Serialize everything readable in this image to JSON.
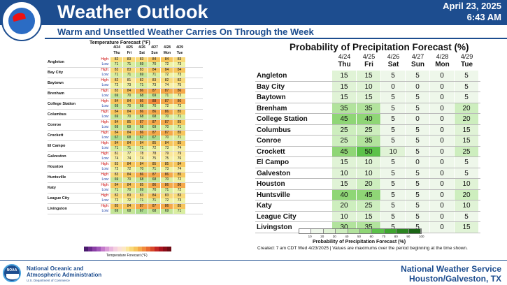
{
  "header": {
    "title": "Weather Outlook",
    "date": "April 23, 2025",
    "time": "6:43 AM",
    "subtitle": "Warm and Unsettled Weather Carries On Through the Week",
    "logo_ring_text": "NATIONAL WEATHER SERVICE"
  },
  "temperature": {
    "title": "Temperature Forecast (°F)",
    "scale_label": "Temperature Forecast (°F)",
    "high_label": "High:",
    "low_label": "Low:",
    "columns": [
      {
        "date": "4/24",
        "dow": "Thu"
      },
      {
        "date": "4/25",
        "dow": "Fri"
      },
      {
        "date": "4/26",
        "dow": "Sat"
      },
      {
        "date": "4/27",
        "dow": "Sun"
      },
      {
        "date": "4/28",
        "dow": "Mon"
      },
      {
        "date": "4/29",
        "dow": "Tue"
      }
    ],
    "rows": [
      {
        "city": "Angleton",
        "high": [
          "82",
          "83",
          "83",
          "84",
          "84",
          "83"
        ],
        "low": [
          "71",
          "71",
          "69",
          "70",
          "72",
          "73"
        ]
      },
      {
        "city": "Bay City",
        "high": [
          "83",
          "83",
          "83",
          "84",
          "84",
          "84"
        ],
        "low": [
          "71",
          "71",
          "69",
          "71",
          "72",
          "73"
        ]
      },
      {
        "city": "Baytown",
        "high": [
          "82",
          "81",
          "82",
          "83",
          "82",
          "82"
        ],
        "low": [
          "72",
          "73",
          "71",
          "73",
          "74",
          "75"
        ]
      },
      {
        "city": "Brenham",
        "high": [
          "83",
          "84",
          "86",
          "87",
          "87",
          "86"
        ],
        "low": [
          "69",
          "70",
          "68",
          "69",
          "71",
          "72"
        ]
      },
      {
        "city": "College Station",
        "high": [
          "84",
          "84",
          "86",
          "88",
          "87",
          "86"
        ],
        "low": [
          "69",
          "70",
          "68",
          "70",
          "72",
          "72"
        ]
      },
      {
        "city": "Columbus",
        "high": [
          "84",
          "84",
          "86",
          "86",
          "86",
          "85"
        ],
        "low": [
          "69",
          "70",
          "68",
          "68",
          "70",
          "71"
        ]
      },
      {
        "city": "Conroe",
        "high": [
          "84",
          "85",
          "87",
          "87",
          "87",
          "85"
        ],
        "low": [
          "69",
          "69",
          "68",
          "69",
          "70",
          "71"
        ]
      },
      {
        "city": "Crockett",
        "high": [
          "84",
          "84",
          "86",
          "87",
          "87",
          "85"
        ],
        "low": [
          "67",
          "68",
          "67",
          "67",
          "70",
          "71"
        ]
      },
      {
        "city": "El Campo",
        "high": [
          "84",
          "84",
          "84",
          "85",
          "84",
          "85"
        ],
        "low": [
          "71",
          "71",
          "71",
          "72",
          "73",
          "74"
        ]
      },
      {
        "city": "Galveston",
        "high": [
          "81",
          "77",
          "78",
          "78",
          "79",
          "79"
        ],
        "low": [
          "74",
          "74",
          "74",
          "75",
          "75",
          "76"
        ]
      },
      {
        "city": "Houston",
        "high": [
          "83",
          "84",
          "84",
          "85",
          "85",
          "84"
        ],
        "low": [
          "72",
          "72",
          "70",
          "71",
          "73",
          "74"
        ]
      },
      {
        "city": "Huntsville",
        "high": [
          "83",
          "84",
          "86",
          "87",
          "86",
          "85"
        ],
        "low": [
          "69",
          "70",
          "68",
          "68",
          "70",
          "72"
        ]
      },
      {
        "city": "Katy",
        "high": [
          "84",
          "84",
          "85",
          "86",
          "86",
          "86"
        ],
        "low": [
          "71",
          "70",
          "69",
          "70",
          "71",
          "72"
        ]
      },
      {
        "city": "League City",
        "high": [
          "82",
          "83",
          "83",
          "84",
          "83",
          "83"
        ],
        "low": [
          "72",
          "72",
          "71",
          "71",
          "72",
          "73"
        ]
      },
      {
        "city": "Livingston",
        "high": [
          "85",
          "84",
          "87",
          "87",
          "86",
          "85"
        ],
        "low": [
          "69",
          "68",
          "67",
          "68",
          "69",
          "71"
        ]
      }
    ]
  },
  "precip": {
    "title": "Probability of Precipitation Forecast (%)",
    "scale_label": "Probability of Precipitation Forecast (%)",
    "scale_ticks": [
      "10",
      "20",
      "30",
      "40",
      "50",
      "60",
      "70",
      "80",
      "90",
      "100"
    ],
    "note": "Created: 7 am CDT Wed 4/23/2025  |  Values are maximums over the period beginning at the time shown.",
    "columns": [
      {
        "date": "4/24",
        "dow": "Thu"
      },
      {
        "date": "4/25",
        "dow": "Fri"
      },
      {
        "date": "4/26",
        "dow": "Sat"
      },
      {
        "date": "4/27",
        "dow": "Sun"
      },
      {
        "date": "4/28",
        "dow": "Mon"
      },
      {
        "date": "4/29",
        "dow": "Tue"
      }
    ],
    "rows": [
      {
        "city": "Angleton",
        "values": [
          "15",
          "15",
          "5",
          "5",
          "0",
          "5"
        ]
      },
      {
        "city": "Bay City",
        "values": [
          "15",
          "10",
          "0",
          "0",
          "0",
          "5"
        ]
      },
      {
        "city": "Baytown",
        "values": [
          "15",
          "15",
          "5",
          "5",
          "0",
          "5"
        ]
      },
      {
        "city": "Brenham",
        "values": [
          "35",
          "35",
          "5",
          "5",
          "0",
          "20"
        ]
      },
      {
        "city": "College Station",
        "values": [
          "45",
          "40",
          "5",
          "0",
          "0",
          "20"
        ]
      },
      {
        "city": "Columbus",
        "values": [
          "25",
          "25",
          "5",
          "5",
          "0",
          "15"
        ]
      },
      {
        "city": "Conroe",
        "values": [
          "25",
          "35",
          "5",
          "5",
          "0",
          "15"
        ]
      },
      {
        "city": "Crockett",
        "values": [
          "45",
          "50",
          "10",
          "5",
          "0",
          "25"
        ]
      },
      {
        "city": "El Campo",
        "values": [
          "15",
          "10",
          "5",
          "0",
          "0",
          "5"
        ]
      },
      {
        "city": "Galveston",
        "values": [
          "10",
          "10",
          "5",
          "5",
          "0",
          "5"
        ]
      },
      {
        "city": "Houston",
        "values": [
          "15",
          "20",
          "5",
          "5",
          "0",
          "10"
        ]
      },
      {
        "city": "Huntsville",
        "values": [
          "40",
          "45",
          "5",
          "5",
          "0",
          "20"
        ]
      },
      {
        "city": "Katy",
        "values": [
          "20",
          "25",
          "5",
          "5",
          "0",
          "10"
        ]
      },
      {
        "city": "League City",
        "values": [
          "10",
          "15",
          "5",
          "5",
          "0",
          "5"
        ]
      },
      {
        "city": "Livingston",
        "values": [
          "30",
          "35",
          "5",
          "5",
          "0",
          "15"
        ]
      }
    ]
  },
  "footer": {
    "noaa_line1": "National Oceanic and",
    "noaa_line2": "Atmospheric Administration",
    "noaa_dept": "U.S. Department of Commerce",
    "noaa_logo_text": "NOAA",
    "office_line1": "National Weather Service",
    "office_line2": "Houston/Galveston, TX"
  }
}
